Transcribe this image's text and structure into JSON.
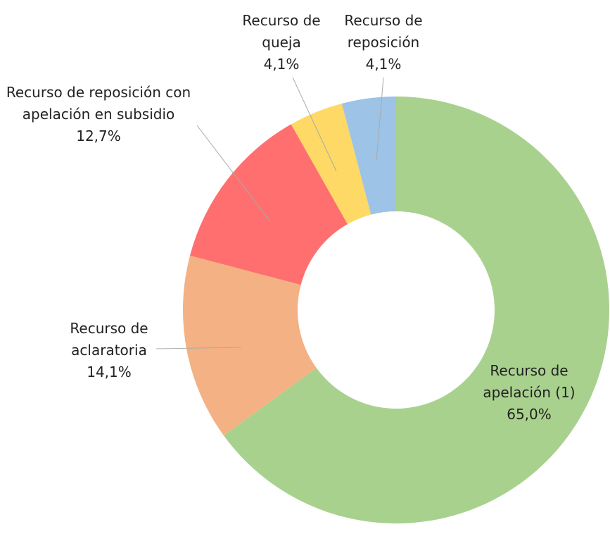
{
  "chart_data": {
    "type": "donut",
    "categories": [
      "Recurso de apelación (1)",
      "Recurso de aclaratoria",
      "Recurso de reposición con apelación en subsidio",
      "Recurso de queja",
      "Recurso de reposición"
    ],
    "values": [
      65.0,
      14.1,
      12.7,
      4.1,
      4.1
    ],
    "value_labels": [
      "65,0%",
      "14,1%",
      "12,7%",
      "4,1%",
      "4,1%"
    ],
    "colors": [
      "#a9d18e",
      "#f4b183",
      "#ff6f6f",
      "#ffd966",
      "#9dc3e6"
    ]
  }
}
